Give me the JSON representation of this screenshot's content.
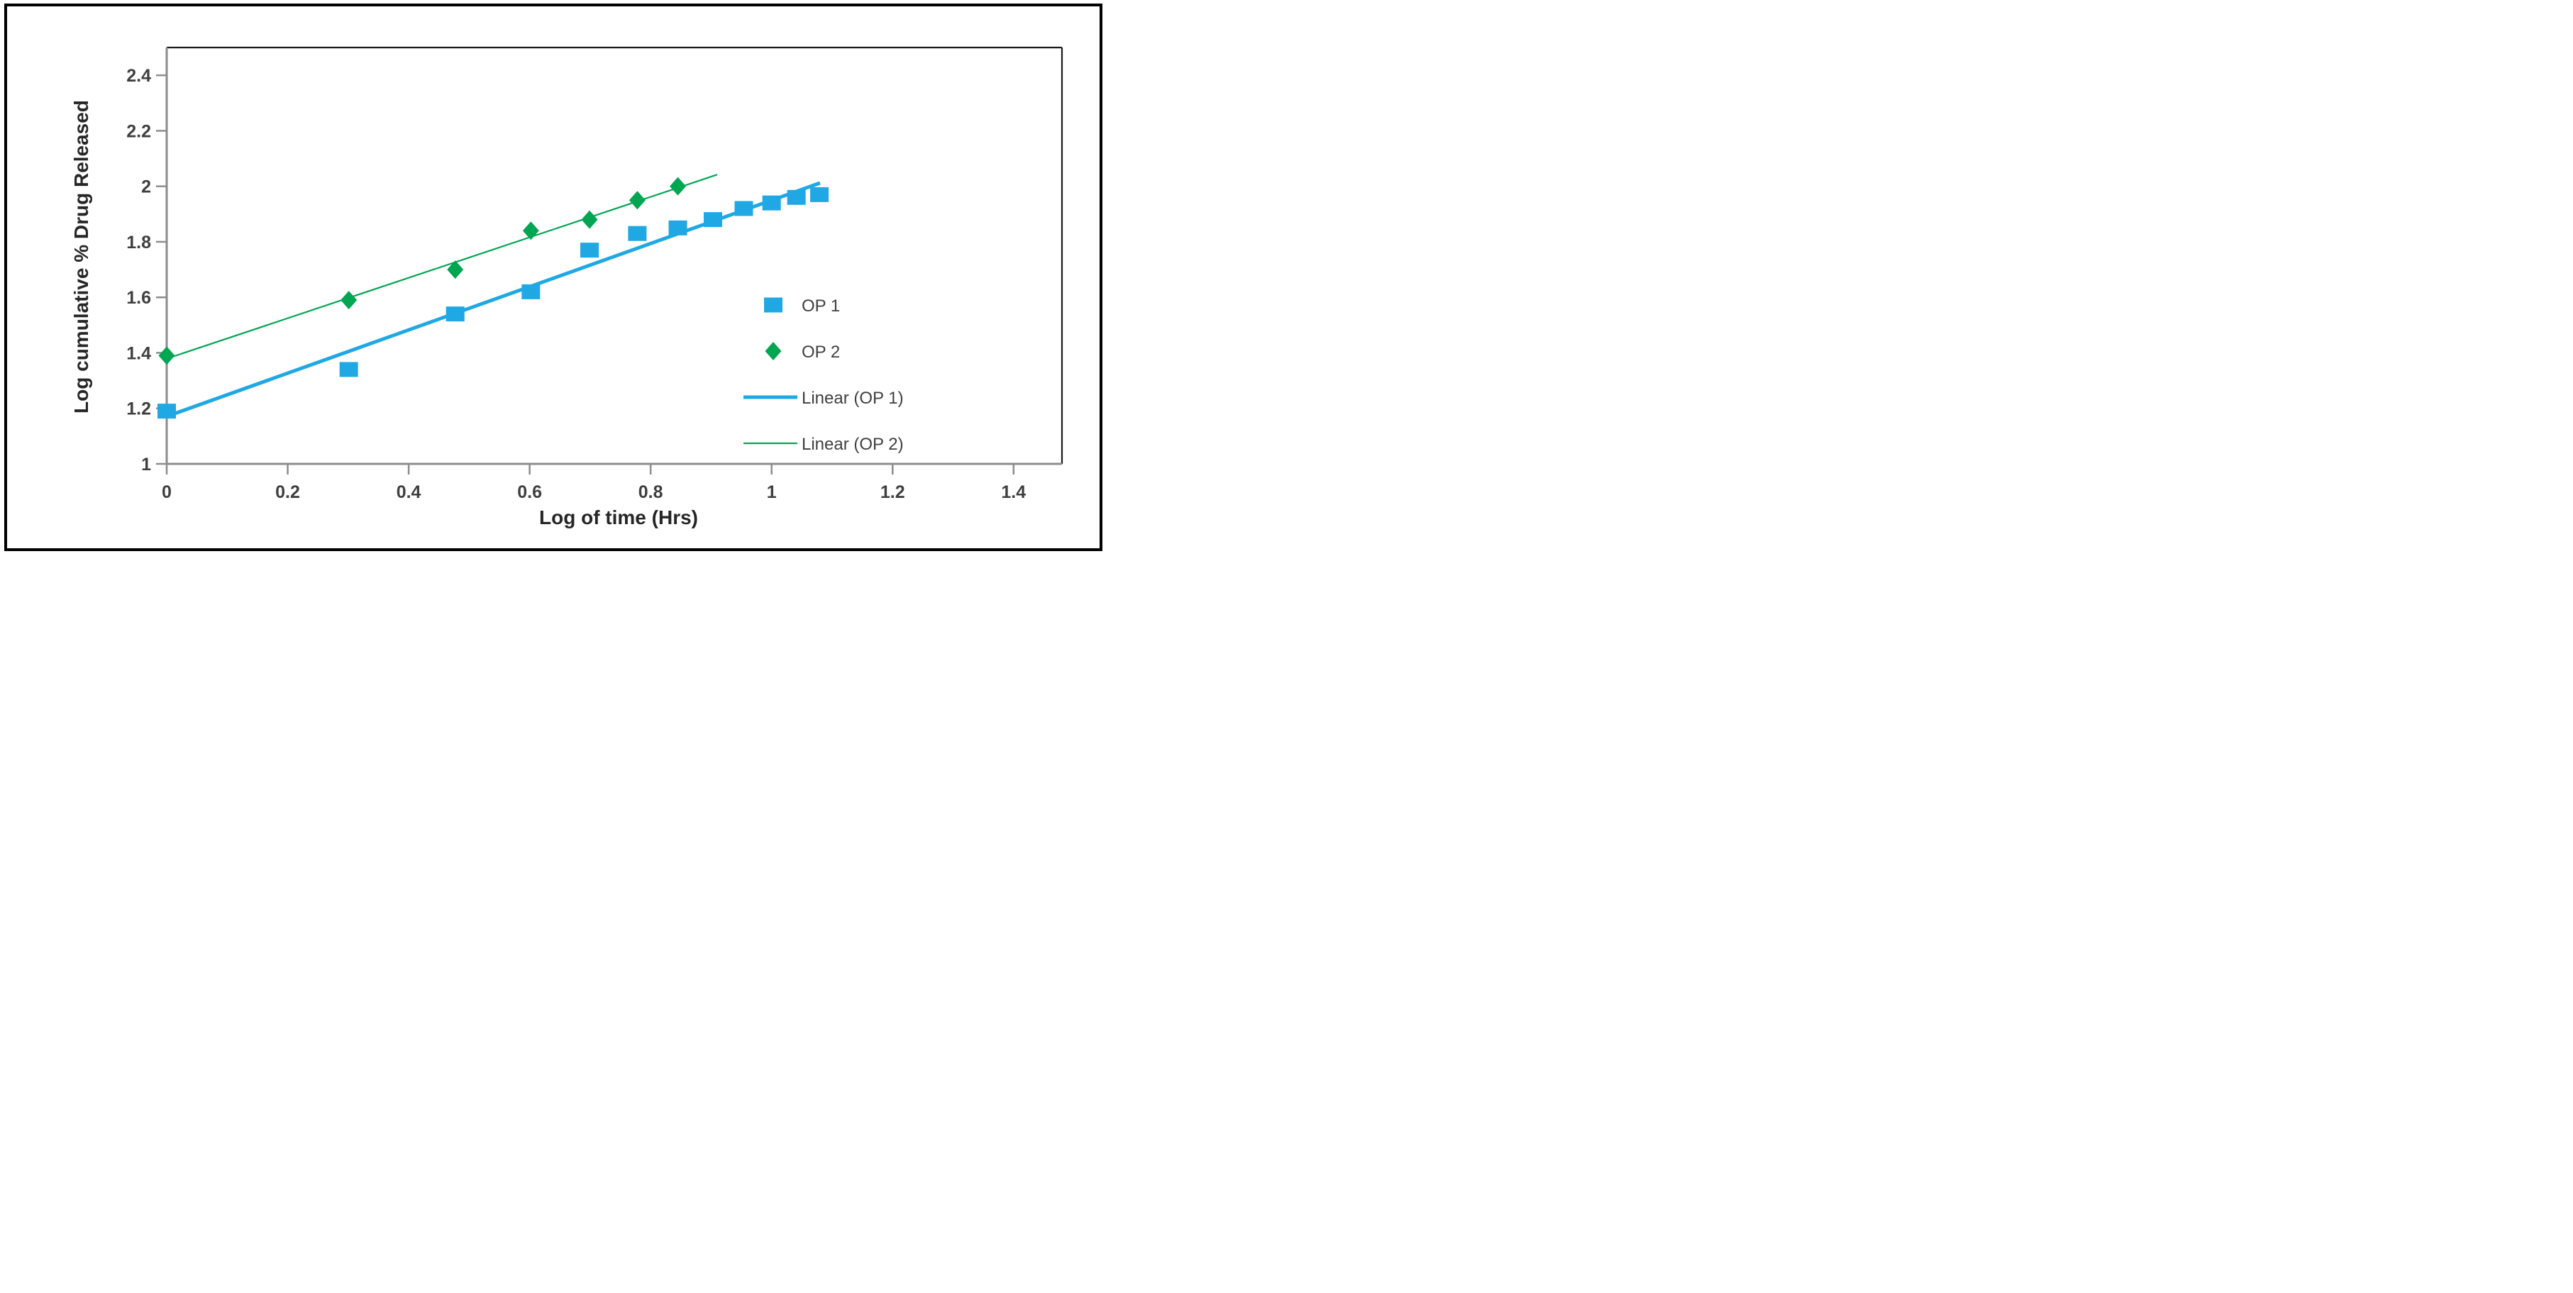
{
  "colors": {
    "op1_blue": "#1FA8E4",
    "op2_green": "#00A651",
    "axis_gray": "#8C8C8C",
    "tick_text": "#3F3F3F",
    "title_text": "#262626",
    "plot_border": "#1A1A1A",
    "figure_border": "#000000",
    "background": "#FFFFFF"
  },
  "chart_data": {
    "type": "scatter",
    "title": "",
    "xlabel": "Log of time (Hrs)",
    "ylabel": "Log cumulative % Drug Released",
    "xlim": [
      0,
      1.48
    ],
    "ylim": [
      1,
      2.5
    ],
    "x_ticks": [
      0,
      0.2,
      0.4,
      0.6,
      0.8,
      1,
      1.2,
      1.4
    ],
    "x_tick_labels": [
      "0",
      "0.2",
      "0.4",
      "0.6",
      "0.8",
      "1",
      "1.2",
      "1.4"
    ],
    "y_ticks": [
      1,
      1.2,
      1.4,
      1.6,
      1.8,
      2,
      2.2,
      2.4
    ],
    "y_tick_labels": [
      "1",
      "1.2",
      "1.4",
      "1.6",
      "1.8",
      "2",
      "2.2",
      "2.4"
    ],
    "grid": false,
    "legend_position": "inside-right",
    "series": [
      {
        "name": "OP 1",
        "marker": "square",
        "color": "#1FA8E4",
        "x": [
          0,
          0.301,
          0.477,
          0.602,
          0.699,
          0.778,
          0.845,
          0.903,
          0.954,
          1.0,
          1.041,
          1.079
        ],
        "y": [
          1.19,
          1.34,
          1.54,
          1.62,
          1.77,
          1.83,
          1.85,
          1.88,
          1.92,
          1.94,
          1.96,
          1.97
        ]
      },
      {
        "name": "OP 2",
        "marker": "diamond",
        "color": "#00A651",
        "x": [
          0,
          0.301,
          0.477,
          0.602,
          0.699,
          0.778,
          0.845
        ],
        "y": [
          1.39,
          1.59,
          1.7,
          1.84,
          1.88,
          1.95,
          2.0
        ]
      }
    ],
    "trendlines": [
      {
        "name": "Linear (OP 1)",
        "color": "#1FA8E4",
        "width": 5,
        "x1": 0,
        "y1": 1.171,
        "x2": 1.08,
        "y2": 2.012
      },
      {
        "name": "Linear (OP 2)",
        "color": "#00A651",
        "width": 2.2,
        "x1": 0,
        "y1": 1.379,
        "x2": 0.91,
        "y2": 2.042
      }
    ],
    "legend": [
      {
        "label": "OP 1",
        "swatch": "square",
        "color": "#1FA8E4"
      },
      {
        "label": "OP 2",
        "swatch": "diamond",
        "color": "#00A651"
      },
      {
        "label": "Linear (OP 1)",
        "swatch": "thick-line",
        "color": "#1FA8E4"
      },
      {
        "label": "Linear (OP 2)",
        "swatch": "thin-line",
        "color": "#00A651"
      }
    ]
  }
}
